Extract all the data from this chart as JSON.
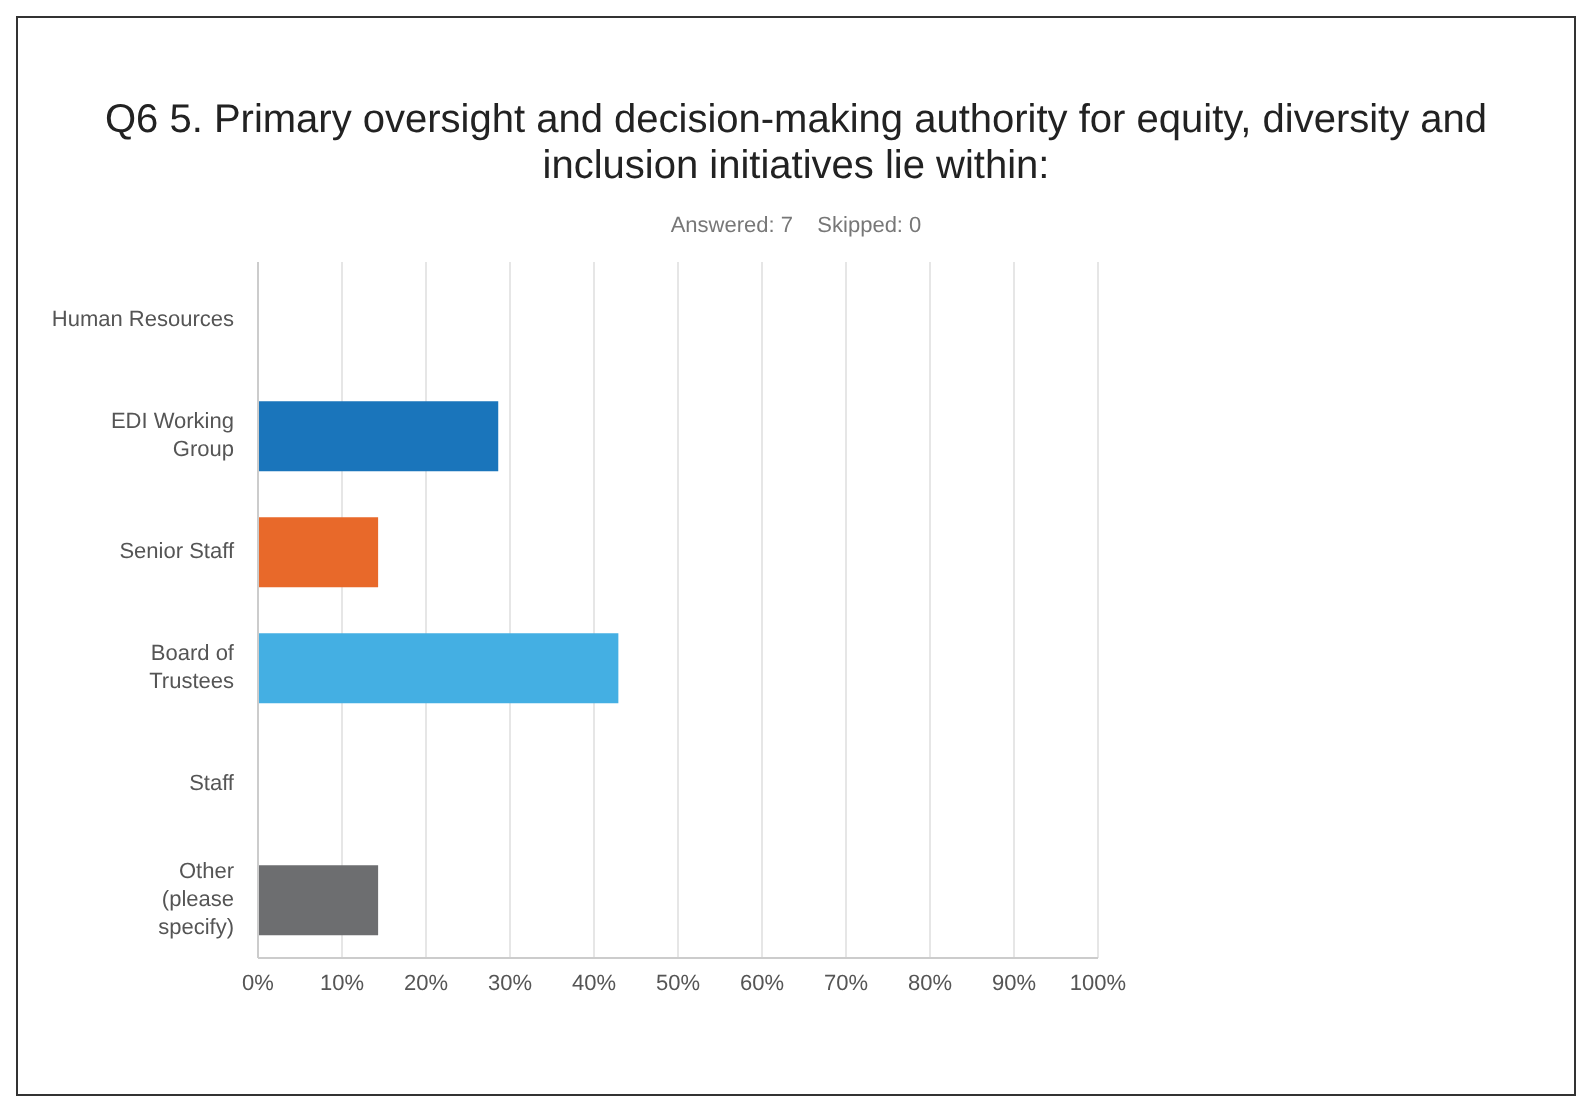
{
  "chart_data": {
    "type": "bar",
    "orientation": "horizontal",
    "title": "Q6 5. Primary oversight and decision-making authority for equity, diversity and inclusion initiatives lie within:",
    "subtitle": "Answered: 7    Skipped: 0",
    "categories": [
      "Human Resources",
      "EDI Working Group",
      "Senior Staff",
      "Board of Trustees",
      "Staff",
      "Other (please specify)"
    ],
    "values": [
      0,
      28.6,
      14.3,
      42.9,
      0,
      14.3
    ],
    "colors": [
      "#1a75bb",
      "#1a75bb",
      "#e8692a",
      "#44afe3",
      "#999999",
      "#6d6e70"
    ],
    "xlim": [
      0,
      100
    ],
    "xticks": [
      {
        "value": 0,
        "label": "0%"
      },
      {
        "value": 10,
        "label": "10%"
      },
      {
        "value": 20,
        "label": "20%"
      },
      {
        "value": 30,
        "label": "30%"
      },
      {
        "value": 40,
        "label": "40%"
      },
      {
        "value": 50,
        "label": "50%"
      },
      {
        "value": 60,
        "label": "60%"
      },
      {
        "value": 70,
        "label": "70%"
      },
      {
        "value": 80,
        "label": "80%"
      },
      {
        "value": 90,
        "label": "90%"
      },
      {
        "value": 100,
        "label": "100%"
      }
    ],
    "grid": "x",
    "legend": false
  }
}
